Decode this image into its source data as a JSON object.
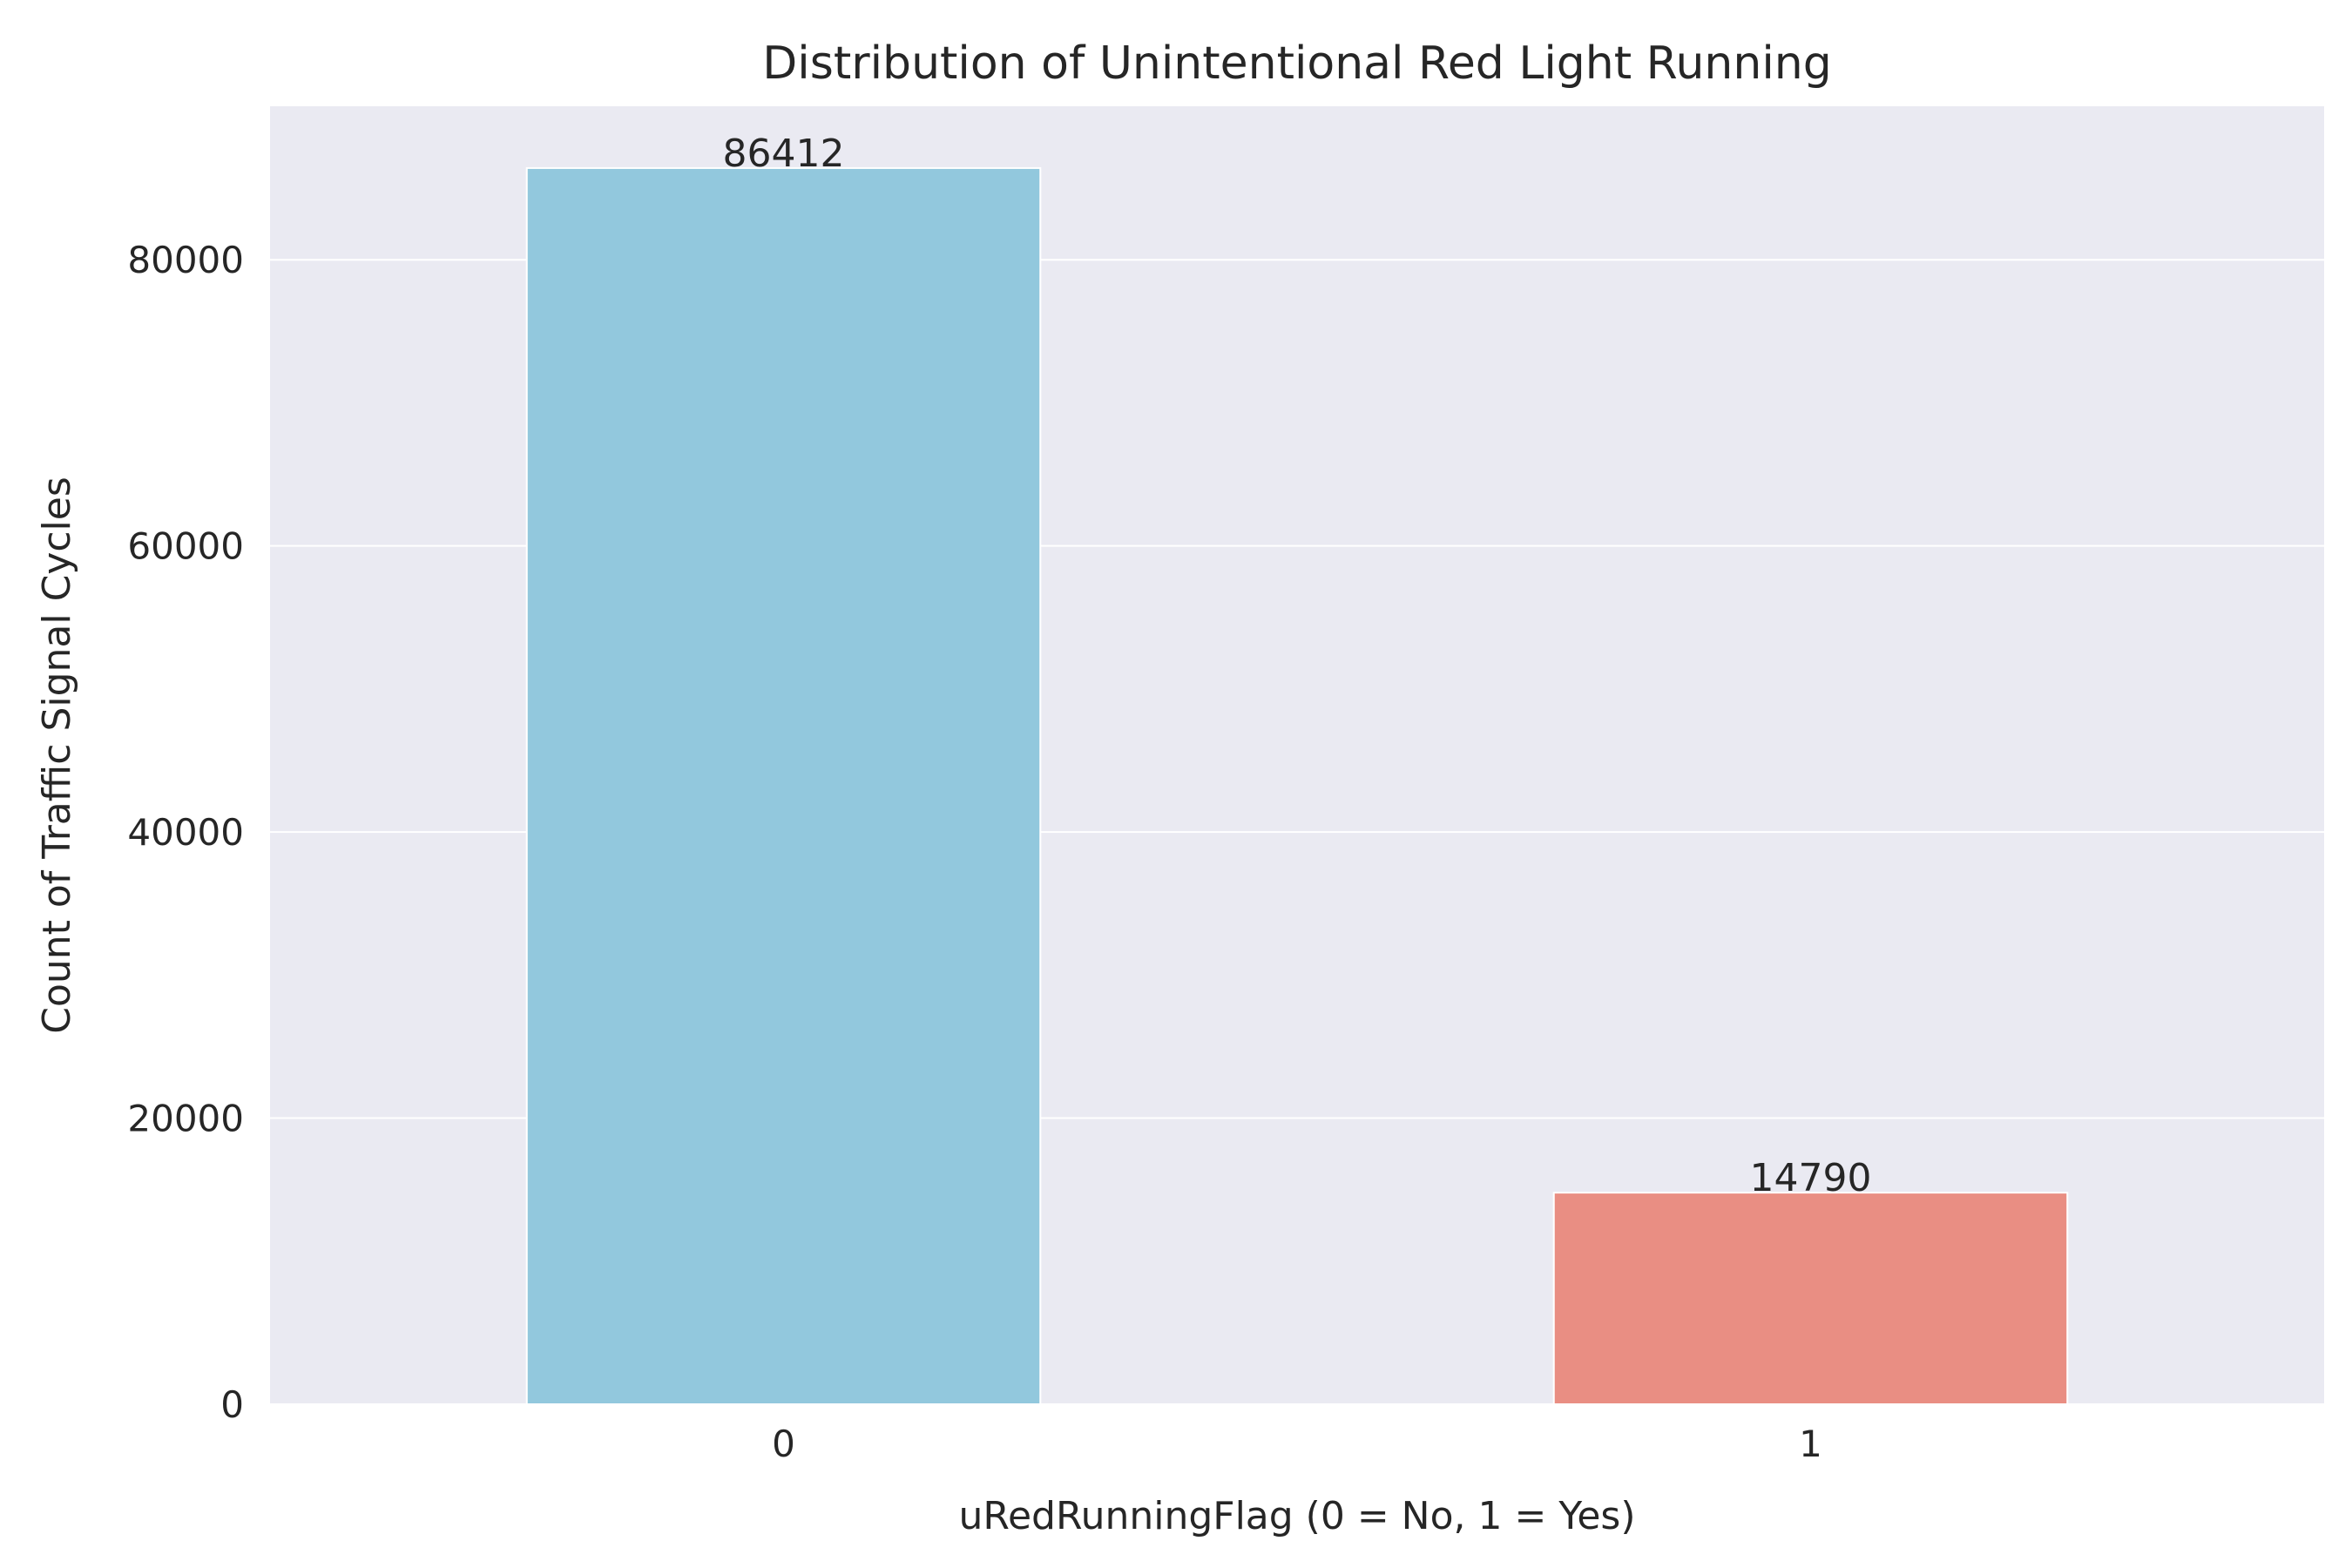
{
  "chart_data": {
    "type": "bar",
    "title": "Distribution of Unintentional Red Light Running",
    "xlabel": "uRedRunningFlag (0 = No, 1 = Yes)",
    "ylabel": "Count of Traffic Signal Cycles",
    "categories": [
      "0",
      "1"
    ],
    "values": [
      86412,
      14790
    ],
    "data_labels": [
      "86412",
      "14790"
    ],
    "colors": [
      "#92c8dd",
      "#e98e83"
    ],
    "ylim": [
      0,
      90731
    ],
    "yticks": [
      0,
      20000,
      40000,
      60000,
      80000
    ],
    "ytick_labels": [
      "0",
      "20000",
      "40000",
      "60000",
      "80000"
    ],
    "grid": true,
    "background": "#eaeaf2",
    "legend": "none"
  }
}
